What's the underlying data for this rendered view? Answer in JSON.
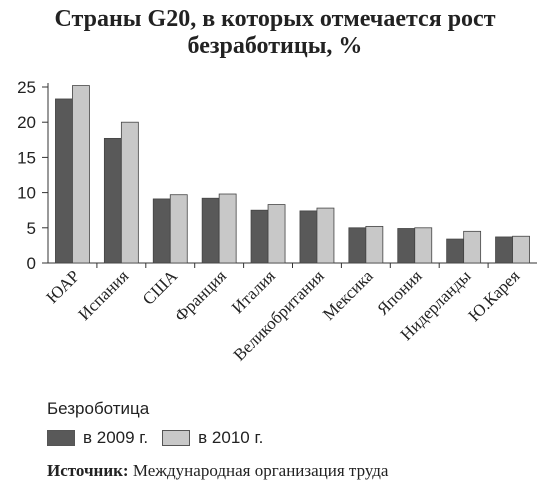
{
  "title_line1": "Страны G20, в которых отмечается рост",
  "title_line2": "безработицы, %",
  "legend_title": "Безроботица",
  "source_label": "Источник:",
  "source_text": " Международная организация труда",
  "colors": {
    "s2009": "#595959",
    "s2010": "#c8c8c8",
    "axis": "#333333"
  },
  "chart_data": {
    "type": "bar",
    "title": "Страны G20, в которых отмечается рост безработицы, %",
    "categories": [
      "ЮАР",
      "Испания",
      "США",
      "Франция",
      "Италия",
      "Великобритания",
      "Мексика",
      "Япония",
      "Нидерланды",
      "Ю.Карея"
    ],
    "series": [
      {
        "name": "в 2009 г.",
        "values": [
          23.3,
          17.7,
          9.1,
          9.2,
          7.5,
          7.4,
          5.0,
          4.9,
          3.4,
          3.7
        ]
      },
      {
        "name": "в 2010 г.",
        "values": [
          25.2,
          20.0,
          9.7,
          9.8,
          8.3,
          7.8,
          5.2,
          5.0,
          4.5,
          3.8
        ]
      }
    ],
    "yticks": [
      "0",
      "5",
      "10",
      "15",
      "20",
      "25"
    ],
    "ylim": [
      0,
      25
    ],
    "grid": false,
    "legend_position": "bottom-left"
  }
}
